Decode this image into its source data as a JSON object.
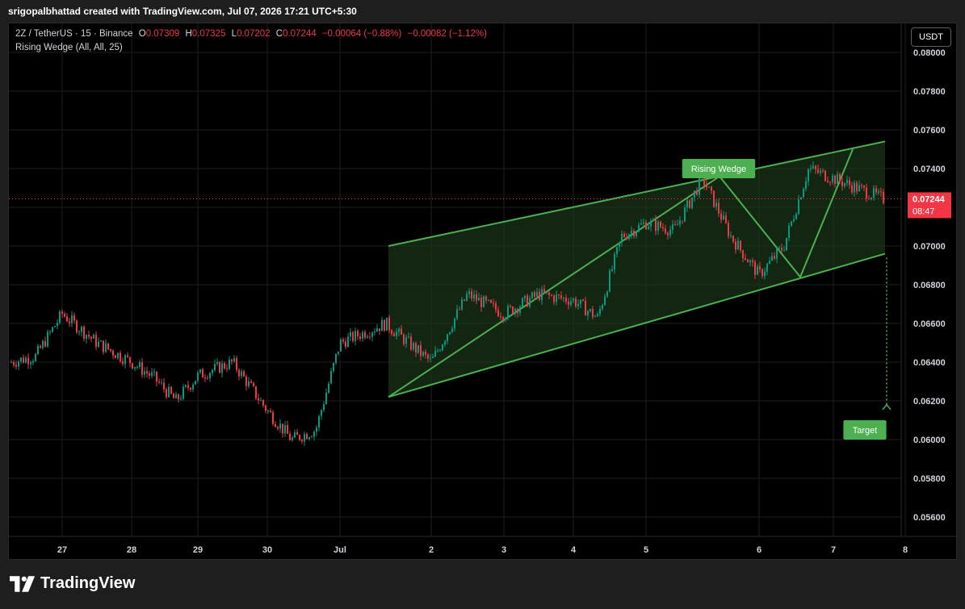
{
  "caption": "srigopalbhattad created with TradingView.com, Jul 07, 2026 17:21 UTC+5:30",
  "legend": {
    "symbol": "2Z / TetherUS · 15 · Binance",
    "o_label": "O",
    "o_value": "0.07309",
    "h_label": "H",
    "h_value": "0.07325",
    "l_label": "L",
    "l_value": "0.07202",
    "c_label": "C",
    "c_value": "0.07244",
    "change": "−0.00064 (−0.88%)",
    "change2": "−0.00082 (−1.12%)",
    "indicator": "Rising Wedge (All, All, 25)"
  },
  "currency_button": "USDT",
  "logo_text": "TradingView",
  "colors": {
    "background": "#000000",
    "up": "#089981",
    "down": "#f23645",
    "pattern": "#4caf50",
    "pattern_fill": "#1b3a1b",
    "price_tag": "#f23645",
    "grid": "#1f1f1f"
  },
  "chart_data": {
    "type": "candlestick",
    "y_axis": {
      "min": 0.055,
      "max": 0.0815,
      "ticks": [
        "0.08000",
        "0.07800",
        "0.07600",
        "0.07400",
        "0.07200",
        "0.07000",
        "0.06800",
        "0.06600",
        "0.06400",
        "0.06200",
        "0.06000",
        "0.05800",
        "0.05600"
      ]
    },
    "x_axis": {
      "ticks": [
        "27",
        "28",
        "29",
        "30",
        "Jul",
        "2",
        "3",
        "4",
        "5",
        "6",
        "7",
        "8"
      ]
    },
    "current_price": {
      "value": "0.07244",
      "countdown": "08:47"
    },
    "price_path": [
      [
        "27",
        0.0643
      ],
      [
        "27",
        0.0665
      ],
      [
        "28",
        0.065
      ],
      [
        "28",
        0.064
      ],
      [
        "29",
        0.0632
      ],
      [
        "29",
        0.062
      ],
      [
        "29",
        0.0633
      ],
      [
        "30",
        0.064
      ],
      [
        "30",
        0.0615
      ],
      [
        "Jul",
        0.06
      ],
      [
        "Jul",
        0.0605
      ],
      [
        "Jul",
        0.065
      ],
      [
        "2",
        0.066
      ],
      [
        "2",
        0.064
      ],
      [
        "3",
        0.0675
      ],
      [
        "3",
        0.0665
      ],
      [
        "4",
        0.0675
      ],
      [
        "4",
        0.0672
      ],
      [
        "5",
        0.0663
      ],
      [
        "5",
        0.0705
      ],
      [
        "5",
        0.0712
      ],
      [
        "6",
        0.0708
      ],
      [
        "6",
        0.0735
      ],
      [
        "6",
        0.0705
      ],
      [
        "6",
        0.0685
      ],
      [
        "7",
        0.07
      ],
      [
        "7",
        0.074
      ],
      [
        "7",
        0.0735
      ],
      [
        "8",
        0.0724
      ]
    ],
    "annotations": [
      {
        "label": "Rising Wedge",
        "type": "pattern"
      },
      {
        "label": "Target",
        "type": "target",
        "price": 0.0618
      }
    ]
  }
}
